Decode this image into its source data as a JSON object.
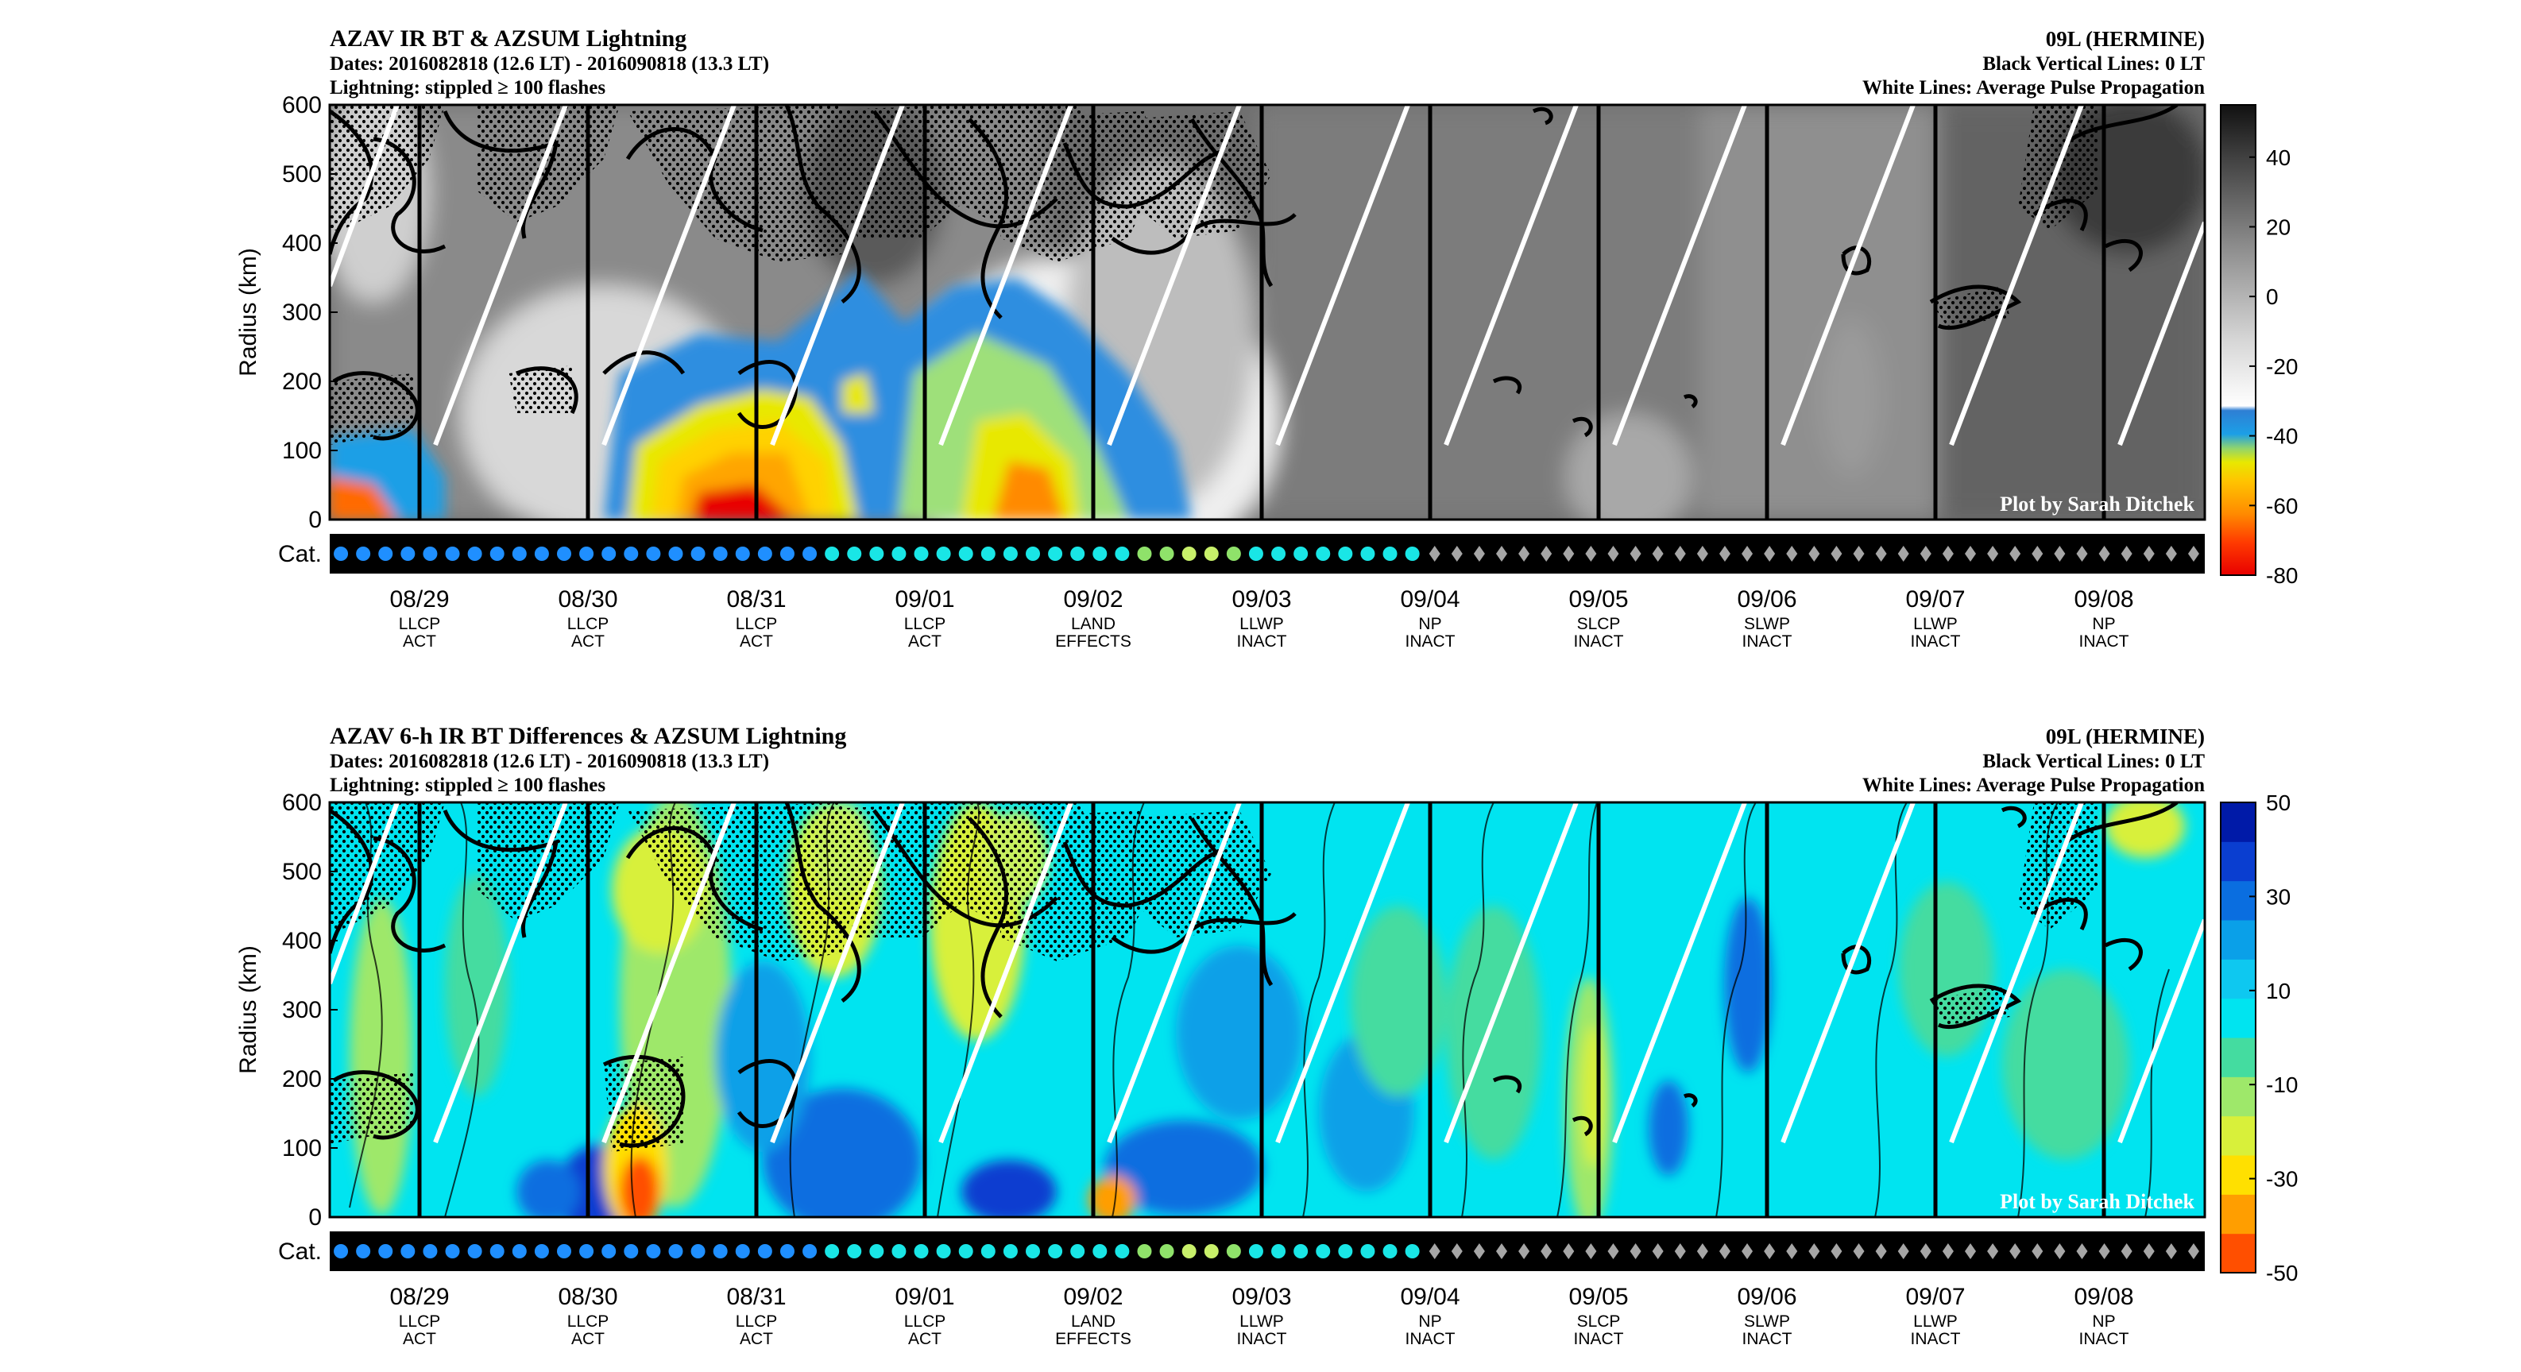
{
  "hermine_series_a": {
    "title": "AZAV IR BT & AZSUM Lightning",
    "dates": "Dates: 2016082818 (12.6 LT) - 2016090818 (13.3 LT)",
    "lightning_note": "Lightning: stippled ≥ 100 flashes",
    "storm": "09L (HERMINE)",
    "vlines_note": "Black Vertical Lines: 0 LT",
    "wlines_note": "White Lines: Average Pulse Propagation",
    "credit": "Plot by Sarah Ditchek",
    "ylabel": "Radius (km)",
    "cat_label": "Cat."
  },
  "hermine_series_b": {
    "title": "AZAV 6-h IR BT Differences & AZSUM Lightning",
    "dates": "Dates: 2016082818 (12.6 LT) - 2016090818 (13.3 LT)",
    "lightning_note": "Lightning: stippled ≥ 100 flashes",
    "storm": "09L (HERMINE)",
    "vlines_note": "Black Vertical Lines: 0 LT",
    "wlines_note": "White Lines: Average Pulse Propagation",
    "credit": "Plot by Sarah Ditchek",
    "ylabel": "Radius (km)",
    "cat_label": "Cat."
  },
  "chart_data": [
    {
      "type": "heatmap",
      "title": "AZAV IR BT & AZSUM Lightning",
      "ylabel": "Radius (km)",
      "ylim": [
        0,
        600
      ],
      "yticks": [
        "0",
        "100",
        "200",
        "300",
        "400",
        "500",
        "600"
      ],
      "x_dates": [
        "08/29",
        "08/30",
        "08/31",
        "09/01",
        "09/02",
        "09/03",
        "09/04",
        "09/05",
        "09/06",
        "09/07",
        "09/08"
      ],
      "x_cat1": [
        "LLCP",
        "LLCP",
        "LLCP",
        "LLCP",
        "LAND",
        "LLWP",
        "NP",
        "SLCP",
        "SLWP",
        "LLWP",
        "NP"
      ],
      "x_cat2": [
        "ACT",
        "ACT",
        "ACT",
        "ACT",
        "EFFECTS",
        "INACT",
        "INACT",
        "INACT",
        "INACT",
        "INACT",
        "INACT"
      ],
      "colorbar_ticks": [
        "40",
        "20",
        "0",
        "-20",
        "-40",
        "-60",
        "-80"
      ],
      "colorbar_range": [
        -80,
        55
      ],
      "colormap": [
        "#e80000",
        "#ff6a00",
        "#ffa500",
        "#ffd200",
        "#e8e800",
        "#9ee07a",
        "#1c9fe6",
        "#2f7fd8",
        "#ffffff",
        "#1a1a1a"
      ],
      "time_points": 84,
      "category_markers": "circles 08/28-09/03, diamonds 09/03-09/08"
    },
    {
      "type": "heatmap",
      "title": "AZAV 6-h IR BT Differences & AZSUM Lightning",
      "ylabel": "Radius (km)",
      "ylim": [
        0,
        600
      ],
      "yticks": [
        "0",
        "100",
        "200",
        "300",
        "400",
        "500",
        "600"
      ],
      "x_dates": [
        "08/29",
        "08/30",
        "08/31",
        "09/01",
        "09/02",
        "09/03",
        "09/04",
        "09/05",
        "09/06",
        "09/07",
        "09/08"
      ],
      "x_cat1": [
        "LLCP",
        "LLCP",
        "LLCP",
        "LLCP",
        "LAND",
        "LLWP",
        "NP",
        "SLCP",
        "SLWP",
        "LLWP",
        "NP"
      ],
      "x_cat2": [
        "ACT",
        "ACT",
        "ACT",
        "ACT",
        "EFFECTS",
        "INACT",
        "INACT",
        "INACT",
        "INACT",
        "INACT",
        "INACT"
      ],
      "colorbar_ticks": [
        "50",
        "30",
        "10",
        "-10",
        "-30",
        "-50"
      ],
      "colorbar_range": [
        -50,
        50
      ],
      "colormap": [
        "#ff4f00",
        "#ff9e00",
        "#ffe000",
        "#d8f03a",
        "#9ee86a",
        "#44dca0",
        "#00e4f0",
        "#0ec8f0",
        "#0aa0e8",
        "#0a6ee0",
        "#0a3ed0",
        "#001aa8"
      ],
      "time_points": 84
    }
  ],
  "colors": {
    "stipple": "#000000",
    "propagation_lines": "#ffffff",
    "cat_circle_blue": "#1f8fff",
    "cat_circle_cyan": "#19e6e6",
    "cat_circle_green": "#8fe26a",
    "cat_diamond": "#a6a6a6"
  }
}
